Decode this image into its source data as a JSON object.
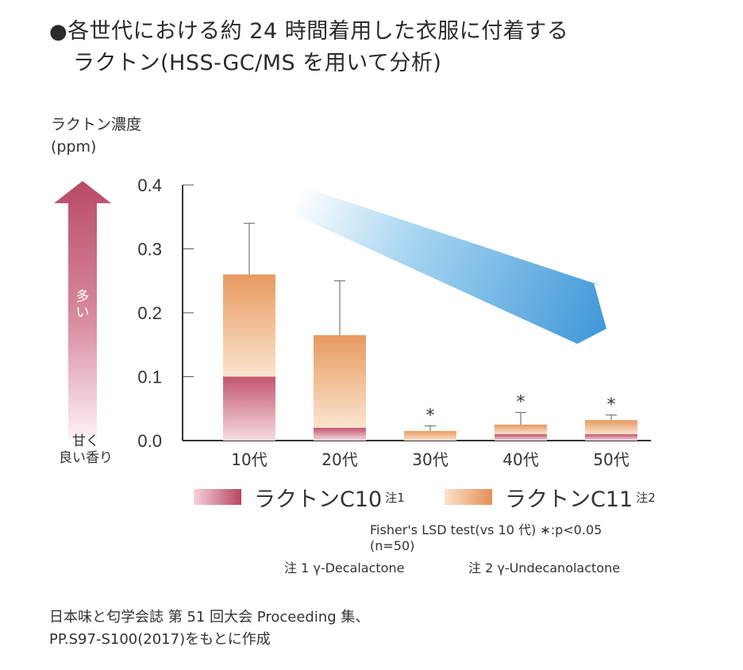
{
  "header": {
    "bullet": "●",
    "title_line1": "各世代における約 24 時間着用した衣服に付着する",
    "title_line2": "ラクトン(HSS-GC/MS を用いて分析)"
  },
  "y_axis_label": {
    "line1": "ラクトン濃度",
    "line2": "(ppm)"
  },
  "up_arrow_label": "多い",
  "down_label": {
    "line1": "甘く",
    "line2": "良い香り"
  },
  "legend": [
    {
      "label": "ラクトンC10",
      "note": "注1",
      "color_left": "#f6d2dc",
      "color_right": "#b8465e"
    },
    {
      "label": "ラクトンC11",
      "note": "注2",
      "color_left": "#fbe3cc",
      "color_right": "#e38f55"
    }
  ],
  "notes": {
    "stat": "Fisher's LSD test(vs 10 代)  ∗:p<0.05",
    "n": "(n=50)",
    "note1": "注 1 γ-Decalactone",
    "note2": "注 2 γ-Undecanolactone"
  },
  "source": {
    "line1": "日本味と匂学会誌 第 51 回大会 Proceeding 集、",
    "line2": "PP.S97-S100(2017)をもとに作成"
  },
  "colors": {
    "c10_top": "#c2566d",
    "c10_bottom": "#f8dde4",
    "c11_top": "#e79a5f",
    "c11_bottom": "#fbe4cf",
    "arrow_blue": "#4d9fd9",
    "up_arrow": "#b84a67"
  },
  "chart_data": {
    "type": "bar",
    "stacked": true,
    "categories": [
      "10代",
      "20代",
      "30代",
      "40代",
      "50代"
    ],
    "series": [
      {
        "name": "ラクトンC10",
        "values": [
          0.1,
          0.02,
          0.0,
          0.01,
          0.01
        ]
      },
      {
        "name": "ラクトンC11",
        "values": [
          0.16,
          0.145,
          0.015,
          0.015,
          0.022
        ]
      }
    ],
    "totals": [
      0.26,
      0.165,
      0.015,
      0.025,
      0.032
    ],
    "error_upper": [
      0.34,
      0.25,
      0.023,
      0.044,
      0.04
    ],
    "significance": [
      "",
      "",
      "*",
      "*",
      "*"
    ],
    "ylim": [
      0,
      0.4
    ],
    "yticks": [
      "0.0",
      "0.1",
      "0.2",
      "0.3",
      "0.4"
    ],
    "ylabel": "ラクトン濃度(ppm)",
    "xlabel": "",
    "trend": "decreasing"
  }
}
